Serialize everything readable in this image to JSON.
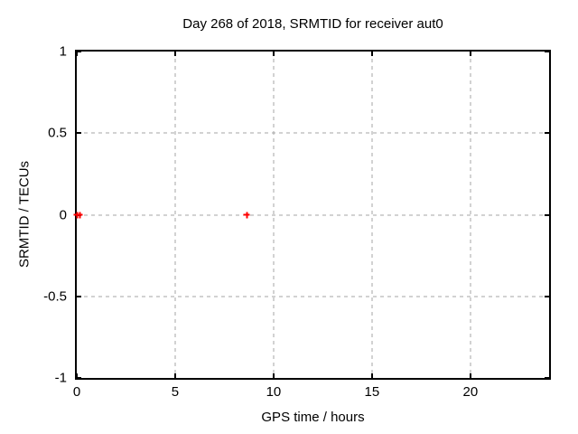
{
  "chart_data": {
    "type": "scatter",
    "title": "Day 268 of 2018, SRMTID for receiver aut0",
    "xlabel": "GPS time / hours",
    "ylabel": "SRMTID / TECUs",
    "xlim": [
      0,
      24
    ],
    "ylim": [
      -1,
      1
    ],
    "xticks": [
      0,
      5,
      10,
      15,
      20
    ],
    "xtick_labels": [
      "0",
      "5",
      "10",
      "15",
      "20"
    ],
    "yticks": [
      1,
      0.5,
      0,
      -0.5,
      -1
    ],
    "ytick_labels": [
      "1",
      "0.5",
      "0",
      "-0.5",
      "-1"
    ],
    "grid": "dashed",
    "legend": "none",
    "series": [
      {
        "name": "SRMTID",
        "marker": "plus",
        "color": "#ff0000",
        "points": [
          [
            0.0,
            0.0
          ],
          [
            0.15,
            0.0
          ],
          [
            8.65,
            0.0
          ]
        ]
      }
    ],
    "colors": {
      "grid": "#a6a6a6",
      "border": "#000000",
      "background": "#ffffff",
      "text": "#000000"
    }
  }
}
